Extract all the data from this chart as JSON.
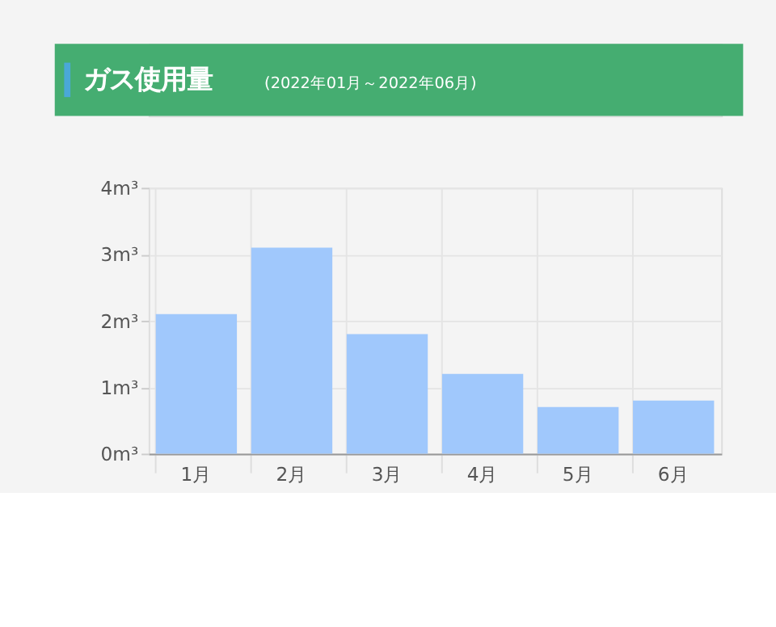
{
  "chart_data": {
    "type": "bar",
    "title": "ガス使用量",
    "subtitle": "(2022年01月～2022年06月)",
    "categories": [
      "1月",
      "2月",
      "3月",
      "4月",
      "5月",
      "6月"
    ],
    "values": [
      2.1,
      3.1,
      1.8,
      1.2,
      0.7,
      0.8
    ],
    "color": "#a0c8fc",
    "ylim": [
      0,
      4
    ],
    "yticks": [
      {
        "value": 0,
        "label": "0m³"
      },
      {
        "value": 1,
        "label": "1m³"
      },
      {
        "value": 2,
        "label": "2m³"
      },
      {
        "value": 3,
        "label": "3m³"
      },
      {
        "value": 4,
        "label": "4m³"
      }
    ],
    "grid": true
  }
}
